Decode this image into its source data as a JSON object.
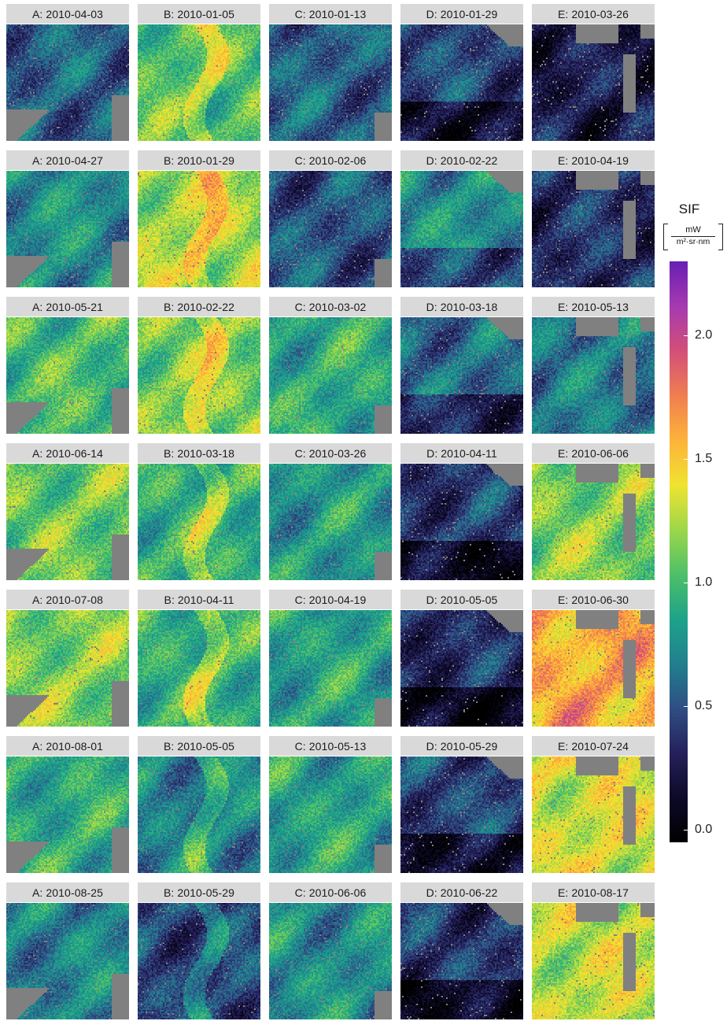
{
  "chart_data": {
    "type": "heatmap",
    "facet_labels": [
      [
        "A: 2010-04-03",
        "B: 2010-01-05",
        "C: 2010-01-13",
        "D: 2010-01-29",
        "E: 2010-03-26"
      ],
      [
        "A: 2010-04-27",
        "B: 2010-01-29",
        "C: 2010-02-06",
        "D: 2010-02-22",
        "E: 2010-04-19"
      ],
      [
        "A: 2010-05-21",
        "B: 2010-02-22",
        "C: 2010-03-02",
        "D: 2010-03-18",
        "E: 2010-05-13"
      ],
      [
        "A: 2010-06-14",
        "B: 2010-03-18",
        "C: 2010-03-26",
        "D: 2010-04-11",
        "E: 2010-06-06"
      ],
      [
        "A: 2010-07-08",
        "B: 2010-04-11",
        "C: 2010-04-19",
        "D: 2010-05-05",
        "E: 2010-06-30"
      ],
      [
        "A: 2010-08-01",
        "B: 2010-05-05",
        "C: 2010-05-13",
        "D: 2010-05-29",
        "E: 2010-07-24"
      ],
      [
        "A: 2010-08-25",
        "B: 2010-05-29",
        "C: 2010-06-06",
        "D: 2010-06-22",
        "E: 2010-08-17"
      ]
    ],
    "approx_mean_sif": [
      [
        0.55,
        1.05,
        0.55,
        0.45,
        0.25
      ],
      [
        0.75,
        1.25,
        0.5,
        0.75,
        0.35
      ],
      [
        1.0,
        1.15,
        0.9,
        0.6,
        0.65
      ],
      [
        1.1,
        0.95,
        0.8,
        0.4,
        1.15
      ],
      [
        1.15,
        0.95,
        0.85,
        0.35,
        1.6
      ],
      [
        0.9,
        0.7,
        0.85,
        0.45,
        1.35
      ],
      [
        0.7,
        0.45,
        0.75,
        0.4,
        1.3
      ]
    ],
    "legend": {
      "title": "SIF",
      "unit_numerator": "mW",
      "unit_denominator": "m²·sr·nm",
      "range": [
        -0.05,
        2.3
      ],
      "ticks": [
        0.0,
        0.5,
        1.0,
        1.5,
        2.0
      ],
      "tick_labels": [
        "0.0",
        "0.5",
        "1.0",
        "1.5",
        "2.0"
      ],
      "colormap": [
        "#000000",
        "#0d0a29",
        "#26215c",
        "#2f4f84",
        "#21808e",
        "#1ea38a",
        "#4fc069",
        "#9ed74a",
        "#f0e430",
        "#fdb33a",
        "#f07f50",
        "#d44f79",
        "#a63ab0",
        "#6a1fb4"
      ],
      "missing_color": "#808080"
    }
  }
}
